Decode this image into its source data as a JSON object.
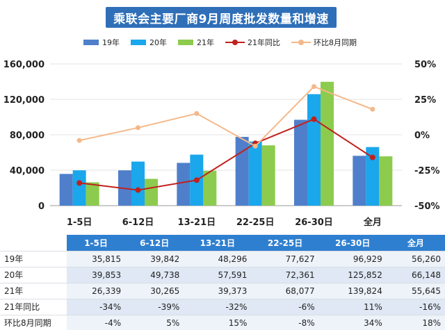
{
  "title": "乘联会主要厂商9月周度批发数量和增速",
  "colors": {
    "y19": "#4f7fcb",
    "y20": "#1aa7ec",
    "y21": "#8dcb4e",
    "yoy21": "#c0211d",
    "mom": "#f5b88a",
    "title_bg": "#2f6fb8",
    "header_bg": "#2f7fd0"
  },
  "chart_data": {
    "type": "bar",
    "categories": [
      "1-5日",
      "6-12日",
      "13-21日",
      "22-25日",
      "26-30日",
      "全月"
    ],
    "series": [
      {
        "name": "19年",
        "values": [
          35815,
          39842,
          48296,
          77627,
          96929,
          56260
        ]
      },
      {
        "name": "20年",
        "values": [
          39853,
          49738,
          57591,
          72361,
          125852,
          66148
        ]
      },
      {
        "name": "21年",
        "values": [
          26339,
          30265,
          39373,
          68077,
          139824,
          55645
        ]
      }
    ],
    "line_series": [
      {
        "name": "21年同比",
        "values": [
          -34,
          -39,
          -32,
          -6,
          11,
          -16
        ],
        "axis": "right"
      },
      {
        "name": "环比8月同期",
        "values": [
          -4,
          5,
          15,
          -8,
          34,
          18
        ],
        "axis": "right"
      }
    ],
    "ylim": [
      0,
      160000
    ],
    "y_ticks": [
      "0",
      "40,000",
      "80,000",
      "120,000",
      "160,000"
    ],
    "y2lim": [
      -50,
      50
    ],
    "y2_ticks": [
      "-50%",
      "-25%",
      "0%",
      "25%",
      "50%"
    ],
    "legend_position": "top"
  },
  "table": {
    "headers": [
      "1-5日",
      "6-12日",
      "13-21日",
      "22-25日",
      "26-30日",
      "全月"
    ],
    "rows": [
      {
        "label": "19年",
        "cells": [
          "35,815",
          "39,842",
          "48,296",
          "77,627",
          "96,929",
          "56,260"
        ]
      },
      {
        "label": "20年",
        "cells": [
          "39,853",
          "49,738",
          "57,591",
          "72,361",
          "125,852",
          "66,148"
        ]
      },
      {
        "label": "21年",
        "cells": [
          "26,339",
          "30,265",
          "39,373",
          "68,077",
          "139,824",
          "55,645"
        ]
      },
      {
        "label": "21年同比",
        "cells": [
          "-34%",
          "-39%",
          "-32%",
          "-6%",
          "11%",
          "-16%"
        ]
      },
      {
        "label": "环比8月同期",
        "cells": [
          "-4%",
          "5%",
          "15%",
          "-8%",
          "34%",
          "18%"
        ]
      }
    ]
  }
}
